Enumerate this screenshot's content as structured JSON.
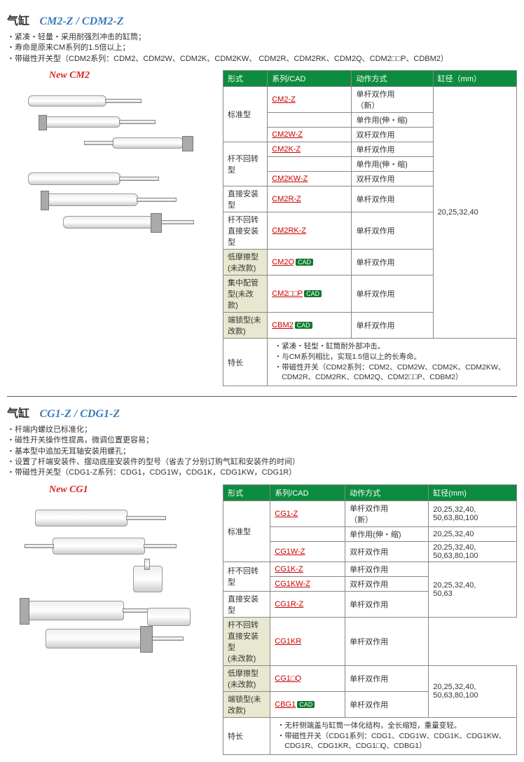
{
  "section1": {
    "prefix": "气缸",
    "model": "CM2-Z / CDM2-Z",
    "bullets": [
      "紧凑・轻量・采用耐强烈冲击的缸筒；",
      "寿命是原来CM系列的1.5倍以上；",
      "带磁性开关型（CDM2系列：CDM2、CDM2W、CDM2K、CDM2KW、 CDM2R、CDM2RK、CDM2Q、CDM2□□P、CDBM2）"
    ],
    "newLabel": "New CM2",
    "headers": [
      "形式",
      "系列/CAD",
      "动作方式",
      "缸径（mm）"
    ],
    "boreAll": "20,25,32,40",
    "rows": [
      {
        "type": "标准型",
        "span": 3,
        "series": "CM2-Z",
        "link": true,
        "action": "单杆双作用\n（新）"
      },
      {
        "series": "",
        "action": "单作用(伸・缩)"
      },
      {
        "series": "CM2W-Z",
        "link": true,
        "action": "双杆双作用"
      },
      {
        "type": "杆不回转型",
        "span": 3,
        "series": "CM2K-Z",
        "link": true,
        "action": "单杆双作用"
      },
      {
        "series": "",
        "action": "单作用(伸・缩)"
      },
      {
        "series": "CM2KW-Z",
        "link": true,
        "action": "双杆双作用"
      },
      {
        "type": "直接安装型",
        "span": 1,
        "series": "CM2R-Z",
        "link": true,
        "action": "单杆双作用"
      },
      {
        "type": "杆不回转直接安装型",
        "span": 1,
        "series": "CM2RK-Z",
        "link": true,
        "action": "单杆双作用"
      },
      {
        "type": "低摩擦型(未改款)",
        "span": 1,
        "shade": true,
        "series": "CM2Q",
        "link": true,
        "cad": true,
        "action": "单杆双作用"
      },
      {
        "type": "集中配管型(未改款)",
        "span": 1,
        "shade": true,
        "series": "CM2□□P",
        "link": true,
        "cad": true,
        "action": "单杆双作用"
      },
      {
        "type": "端锁型(未改款)",
        "span": 1,
        "shade": true,
        "series": "CBM2",
        "link": true,
        "cad": true,
        "action": "单杆双作用"
      }
    ],
    "featLabel": "特长",
    "features": [
      "紧凑・轻型・缸筒耐外部冲击。",
      "与CM系列相比，实现1.5倍以上的长寿命。",
      "带磁性开关（CDM2系列：CDM2、CDM2W、CDM2K、CDM2KW、CDM2R、CDM2RK、CDM2Q、CDM2□□P、CDBM2）"
    ]
  },
  "section2": {
    "prefix": "气缸",
    "model": "CG1-Z / CDG1-Z",
    "bullets": [
      "杆端内螺纹已标准化；",
      "磁性开关操作性提高，微调位置更容易；",
      "基本型中追加无耳轴安装用螺孔；",
      "设置了杆端安装件、摆动底座安装件的型号（省去了分别订购气缸和安装件的时间）",
      "带磁性开关型（CDG1-Z系列：CDG1，CDG1W，CDG1K，CDG1KW，CDG1R）"
    ],
    "newLabel": "New CG1",
    "headers": [
      "形式",
      "系列/CAD",
      "动作方式",
      "缸径(mm)"
    ],
    "rows": [
      {
        "type": "标准型",
        "span": 3,
        "series": "CG1-Z",
        "link": true,
        "action": "单杆双作用\n（新）",
        "bore": "20,25,32,40,\n50,63,80,100"
      },
      {
        "series": "",
        "action": "单作用(伸・缩)",
        "bore": "20,25,32,40"
      },
      {
        "series": "CG1W-Z",
        "link": true,
        "action": "双杆双作用",
        "bore": "20,25,32,40,\n50,63,80,100"
      },
      {
        "type": "杆不回转型",
        "span": 2,
        "series": "CG1K-Z",
        "link": true,
        "action": "单杆双作用",
        "borespan": 3,
        "bore": "20,25,32,40,\n50,63"
      },
      {
        "series": "CG1KW-Z",
        "link": true,
        "action": "双杆双作用"
      },
      {
        "type": "直接安装型",
        "span": 1,
        "series": "CG1R-Z",
        "link": true,
        "action": "单杆双作用"
      },
      {
        "type": "杆不回转直接安装型\n(未改款)",
        "span": 1,
        "shade": true,
        "series": "CG1KR",
        "link": true,
        "action": "单杆双作用"
      },
      {
        "type": "低摩擦型(未改款)",
        "span": 1,
        "shade": true,
        "series": "CG1□Q",
        "link": true,
        "action": "单杆双作用",
        "borespan": 2,
        "bore": "20,25,32,40,\n50,63,80,100"
      },
      {
        "type": "端锁型(未改款)",
        "span": 1,
        "shade": true,
        "series": "CBG1",
        "link": true,
        "cad": true,
        "action": "单杆双作用"
      }
    ],
    "featLabel": "特长",
    "features": [
      "无杆侧端盖与缸筒一体化结构，全长缩短，重量变轻。",
      "带磁性开关（CDG1系列：CDG1、CDG1W、CDG1K、CDG1KW、CDG1R、CDG1KR、CDG1□Q、CDBG1）"
    ]
  }
}
